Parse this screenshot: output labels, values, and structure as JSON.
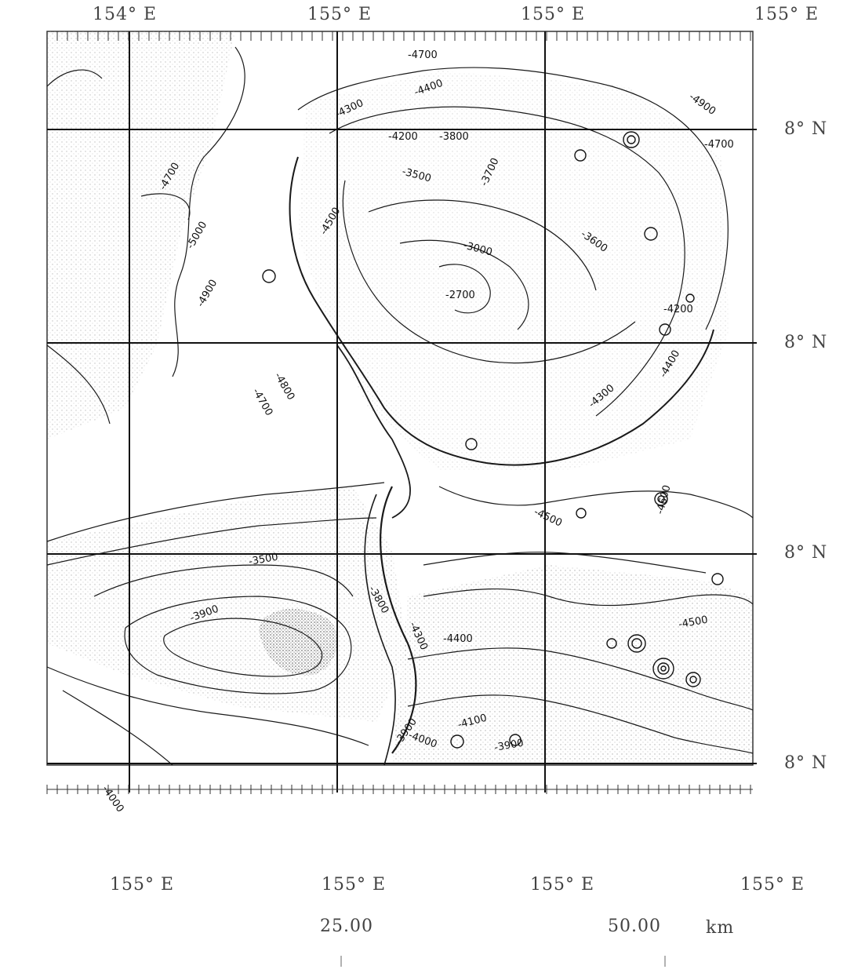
{
  "map": {
    "top_labels": [
      "154° E",
      "155° E",
      "155° E",
      "155° E"
    ],
    "bottom_labels": [
      "155° E",
      "155° E",
      "155° E",
      "155° E"
    ],
    "right_labels": [
      "8° N",
      "8° N",
      "8° N",
      "8° N"
    ],
    "scale": {
      "label_1": "25.00",
      "label_2": "50.00",
      "unit": "km"
    },
    "contour_labels": [
      "-4700",
      "-4400",
      "-4300",
      "-4200",
      "-3800",
      "-4900",
      "-4700",
      "-3500",
      "-4500",
      "-4700",
      "-5000",
      "-4900",
      "-3000",
      "-3700",
      "-2700",
      "-3600",
      "-4200",
      "-4800",
      "-4700",
      "-4300",
      "-4400",
      "-3500",
      "-3800",
      "-3900",
      "-4400",
      "-4300",
      "-4500",
      "-3900",
      "-4100",
      "-4000",
      "-3900",
      "-4600",
      "-4500",
      "-4000"
    ],
    "colors": {
      "ink": "#1a1a1a",
      "grid": "#111111",
      "stipple": "#9a9a9a"
    }
  }
}
